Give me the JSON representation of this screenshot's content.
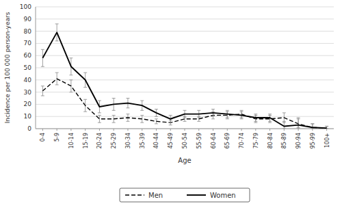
{
  "chart_data": {
    "type": "line",
    "xlabel": "Age",
    "ylabel": "Incidence per 100 000 person-years",
    "categories": [
      "0-4",
      "5-9",
      "10-14",
      "15-19",
      "20-24",
      "25-29",
      "30-34",
      "35-39",
      "40-44",
      "45-49",
      "50-54",
      "55-59",
      "60-64",
      "65-69",
      "70-74",
      "75-79",
      "80-84",
      "85-89",
      "90-94",
      "95-99",
      "100+"
    ],
    "series": [
      {
        "name": "Men",
        "color": "#000000",
        "line_style": "dashed",
        "values": [
          31,
          41,
          35,
          19,
          8,
          8,
          9,
          8,
          6,
          5,
          8,
          8,
          11,
          11,
          12,
          8,
          8,
          9,
          4,
          1,
          0.5
        ],
        "ci_lo": [
          27,
          36,
          30,
          14,
          5,
          5,
          6,
          5,
          4,
          3,
          6,
          6,
          8,
          8,
          9,
          5,
          5,
          5,
          1,
          0,
          0
        ],
        "ci_hi": [
          35,
          46,
          40,
          24,
          11,
          11,
          12,
          11,
          8,
          7,
          10,
          10,
          14,
          14,
          15,
          11,
          11,
          13,
          9,
          4,
          2
        ]
      },
      {
        "name": "Women",
        "color": "#000000",
        "line_style": "solid",
        "values": [
          58,
          79,
          51,
          40,
          18,
          20,
          21,
          19,
          13,
          8,
          12,
          12,
          13,
          12,
          11,
          9,
          9,
          2,
          3,
          1,
          0.5
        ],
        "ci_lo": [
          51,
          72,
          44,
          34,
          13,
          15,
          17,
          15,
          10,
          5,
          9,
          9,
          10,
          9,
          8,
          6,
          6,
          0,
          0,
          0,
          0
        ],
        "ci_hi": [
          65,
          86,
          58,
          46,
          23,
          25,
          25,
          23,
          16,
          11,
          15,
          15,
          16,
          15,
          14,
          12,
          12,
          6,
          8,
          4,
          2
        ]
      }
    ],
    "ylim": [
      0,
      100
    ],
    "yticks": [
      0,
      10,
      20,
      30,
      40,
      50,
      60,
      70,
      80,
      90,
      100
    ],
    "grid": true,
    "legend": "bottom"
  }
}
